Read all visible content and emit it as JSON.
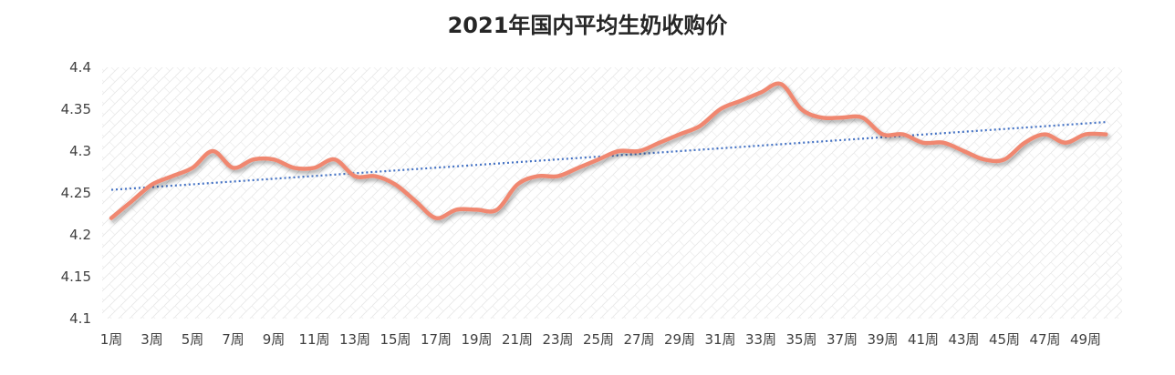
{
  "chart_data": {
    "type": "line",
    "title": "2021年国内平均生奶收购价",
    "xlabel": "",
    "ylabel": "",
    "ylim": [
      4.1,
      4.4
    ],
    "yticks": [
      "4.1",
      "4.15",
      "4.2",
      "4.25",
      "4.3",
      "4.35",
      "4.4"
    ],
    "categories": [
      "1周",
      "2周",
      "3周",
      "4周",
      "5周",
      "6周",
      "7周",
      "8周",
      "9周",
      "10周",
      "11周",
      "12周",
      "13周",
      "14周",
      "15周",
      "16周",
      "17周",
      "18周",
      "19周",
      "20周",
      "21周",
      "22周",
      "23周",
      "24周",
      "25周",
      "26周",
      "27周",
      "28周",
      "29周",
      "30周",
      "31周",
      "32周",
      "33周",
      "34周",
      "35周",
      "36周",
      "37周",
      "38周",
      "39周",
      "40周",
      "41周",
      "42周",
      "43周",
      "44周",
      "45周",
      "46周",
      "47周",
      "48周",
      "49周",
      "50周"
    ],
    "xticks_shown": [
      "1周",
      "3周",
      "5周",
      "7周",
      "9周",
      "11周",
      "13周",
      "15周",
      "17周",
      "19周",
      "21周",
      "23周",
      "25周",
      "27周",
      "29周",
      "31周",
      "33周",
      "35周",
      "37周",
      "39周",
      "41周",
      "43周",
      "45周",
      "47周",
      "49周"
    ],
    "series": [
      {
        "color": "#F0876F",
        "values": [
          4.22,
          4.24,
          4.26,
          4.27,
          4.28,
          4.3,
          4.28,
          4.29,
          4.29,
          4.28,
          4.28,
          4.29,
          4.27,
          4.27,
          4.26,
          4.24,
          4.22,
          4.23,
          4.23,
          4.23,
          4.26,
          4.27,
          4.27,
          4.28,
          4.29,
          4.3,
          4.3,
          4.31,
          4.32,
          4.33,
          4.35,
          4.36,
          4.37,
          4.38,
          4.35,
          4.34,
          4.34,
          4.34,
          4.32,
          4.32,
          4.31,
          4.31,
          4.3,
          4.29,
          4.29,
          4.31,
          4.32,
          4.31,
          4.32,
          4.32
        ]
      }
    ],
    "trendline": {
      "type": "linear",
      "color": "#4472C4",
      "style": "dotted"
    },
    "grid": false,
    "legend": "none"
  }
}
